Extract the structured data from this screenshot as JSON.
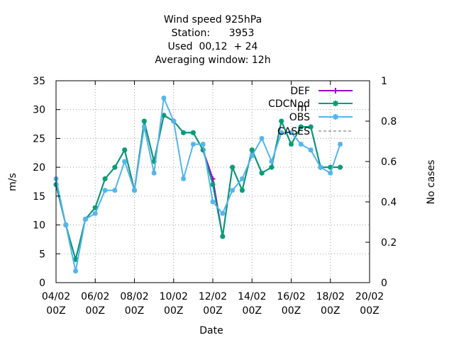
{
  "chart_data": {
    "type": "line",
    "title_lines": [
      "Wind speed 925hPa",
      "Station:      3953",
      "Used  00,12  + 24",
      "Averaging window: 12h"
    ],
    "xlabel": "Date",
    "ylabel": "m/s",
    "y2label": "No cases",
    "x_range": [
      "2014-02-04 00Z",
      "2014-02-20 00Z"
    ],
    "ylim": [
      0,
      35
    ],
    "y_ticks": [
      0,
      5,
      10,
      15,
      20,
      25,
      30,
      35
    ],
    "y2lim": [
      0,
      1
    ],
    "y2_ticks": [
      0,
      0.2,
      0.4,
      0.6,
      0.8,
      1
    ],
    "x_ticks": [
      {
        "date": "04/02",
        "time": "00Z"
      },
      {
        "date": "06/02",
        "time": "00Z"
      },
      {
        "date": "08/02",
        "time": "00Z"
      },
      {
        "date": "10/02",
        "time": "00Z"
      },
      {
        "date": "12/02",
        "time": "00Z"
      },
      {
        "date": "14/02",
        "time": "00Z"
      },
      {
        "date": "16/02",
        "time": "00Z"
      },
      {
        "date": "18/02",
        "time": "00Z"
      },
      {
        "date": "20/02",
        "time": "00Z"
      }
    ],
    "x_step_hours": 12,
    "grid": true,
    "legend_placement": "top-right",
    "series": [
      {
        "name": "DEF",
        "color": "#9400d3",
        "marker": "plus",
        "x_hours": [
          0,
          12,
          24,
          36,
          48,
          60,
          72,
          84,
          96,
          108,
          120,
          132,
          144,
          156,
          168,
          180,
          192,
          204,
          216,
          228,
          240,
          252,
          264,
          276,
          288,
          300,
          312,
          324,
          336,
          348,
          360,
          372,
          384,
          396
        ],
        "values": [
          17,
          10,
          4,
          11,
          13,
          18,
          20,
          23,
          16,
          28,
          21,
          29,
          28,
          26,
          26,
          23,
          18,
          8,
          20,
          16,
          23,
          19,
          20,
          28,
          24,
          27,
          27,
          20,
          20,
          20,
          null,
          null,
          null,
          null
        ]
      },
      {
        "name": "CDCN_mod",
        "color": "#009e73",
        "marker": "star",
        "x_hours": [
          0,
          12,
          24,
          36,
          48,
          60,
          72,
          84,
          96,
          108,
          120,
          132,
          144,
          156,
          168,
          180,
          192,
          204,
          216,
          228,
          240,
          252,
          264,
          276,
          288,
          300,
          312,
          324,
          336,
          348
        ],
        "values": [
          17,
          10,
          4,
          11,
          13,
          18,
          20,
          23,
          16,
          28,
          21,
          29,
          28,
          26,
          26,
          23,
          17,
          8,
          20,
          16,
          23,
          19,
          20,
          28,
          24,
          27,
          27,
          20,
          20,
          20
        ]
      },
      {
        "name": "OBS",
        "color": "#56b4e9",
        "marker": "star",
        "x_hours": [
          0,
          12,
          24,
          36,
          48,
          60,
          72,
          84,
          96,
          108,
          120,
          132,
          144,
          156,
          168,
          180,
          192,
          204,
          216,
          228,
          240,
          252,
          264,
          276,
          288,
          300,
          312,
          324,
          336,
          348
        ],
        "values": [
          18,
          10,
          2,
          11,
          12,
          16,
          16,
          21,
          16,
          27,
          19,
          32,
          28,
          18,
          24,
          24,
          14,
          12,
          16,
          18,
          22,
          25,
          21,
          26,
          26,
          24,
          23,
          20,
          19,
          24
        ]
      },
      {
        "name": "CASES",
        "color": "#999999",
        "marker": "none",
        "dashed": true,
        "values": []
      }
    ],
    "legend_labels": {
      "def": "DEF",
      "cdcn_main": "CDCN",
      "cdcn_sub": "m",
      "cdcn_tail": "od",
      "obs": "OBS",
      "cases": "CASES"
    }
  }
}
